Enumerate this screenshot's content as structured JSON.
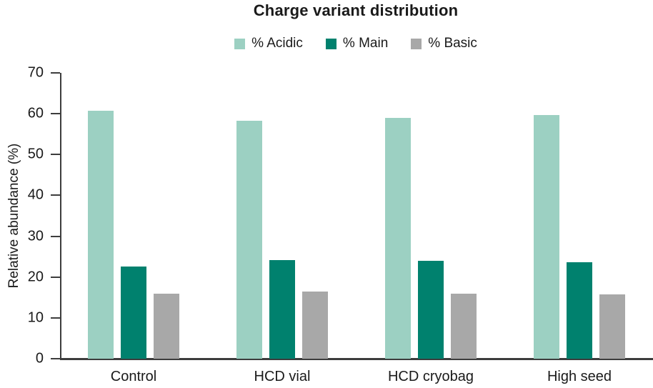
{
  "title": "Charge variant distribution",
  "colors": {
    "acidic": "#9cd0c2",
    "main": "#00816e",
    "basic": "#a8a8a8",
    "axis": "#3d3d3d",
    "text": "#1a1a1a"
  },
  "legend": {
    "position": "top",
    "items": [
      "% Acidic",
      "% Main",
      "% Basic"
    ]
  },
  "chart_data": {
    "type": "bar",
    "title": "Charge variant distribution",
    "xlabel": "",
    "ylabel": "Relative abundance (%)",
    "ylim": [
      0,
      70
    ],
    "yticks": [
      0,
      10,
      20,
      30,
      40,
      50,
      60,
      70
    ],
    "grid": false,
    "legend_position": "top",
    "categories": [
      "Control",
      "HCD vial",
      "HCD cryobag",
      "High seed"
    ],
    "series": [
      {
        "name": "% Acidic",
        "color": "#9cd0c2",
        "values": [
          60.7,
          58.2,
          59.0,
          59.6
        ]
      },
      {
        "name": "% Main",
        "color": "#00816e",
        "values": [
          22.5,
          24.2,
          23.9,
          23.6
        ]
      },
      {
        "name": "% Basic",
        "color": "#a8a8a8",
        "values": [
          15.9,
          16.4,
          16.0,
          15.7
        ]
      }
    ]
  }
}
